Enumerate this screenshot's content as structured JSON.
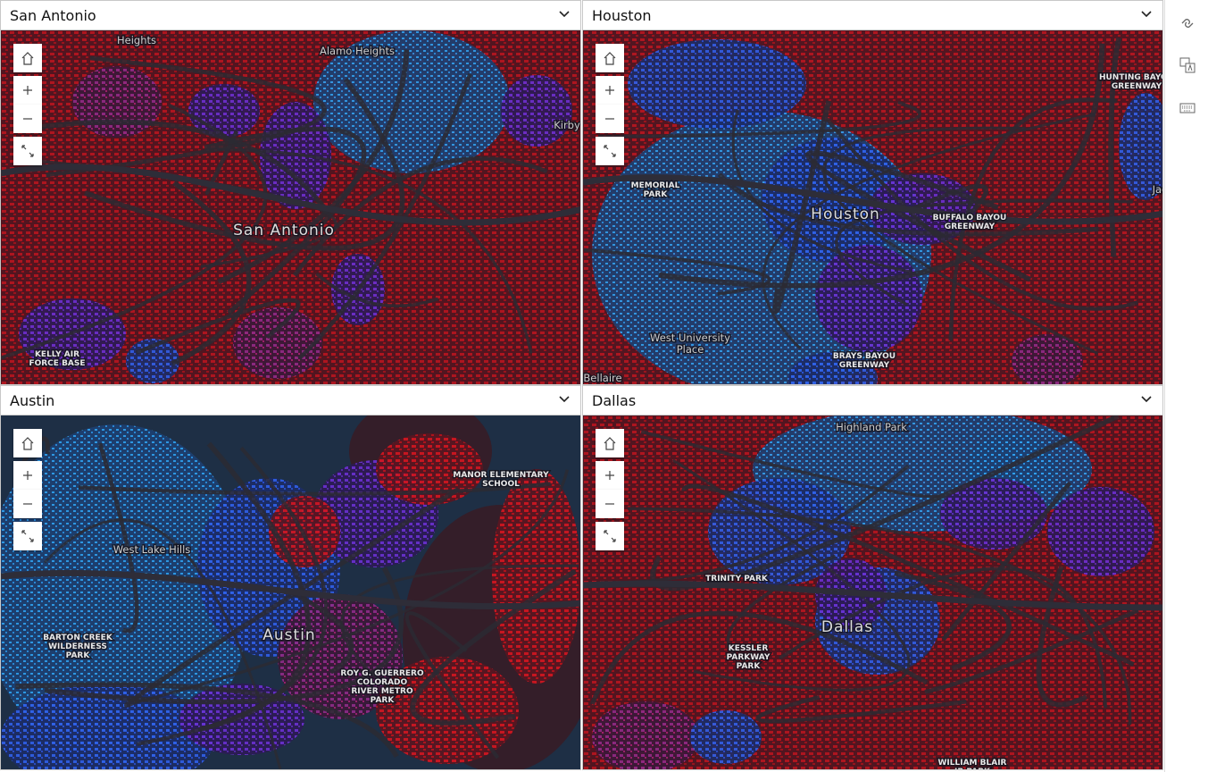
{
  "panels": [
    {
      "title": "San Antonio",
      "labels": [
        {
          "lines": [
            "Heights"
          ]
        },
        {
          "lines": [
            "Alamo Heights"
          ]
        },
        {
          "lines": [
            "Kirby"
          ]
        },
        {
          "lines": [
            "San Antonio"
          ]
        },
        {
          "lines": [
            "KELLY AIR",
            "FORCE BASE"
          ]
        }
      ]
    },
    {
      "title": "Houston",
      "labels": [
        {
          "lines": [
            "HUNTING BAYOU",
            "GREENWAY"
          ]
        },
        {
          "lines": [
            "MEMORIAL",
            "PARK"
          ]
        },
        {
          "lines": [
            "Houston"
          ]
        },
        {
          "lines": [
            "BUFFALO BAYOU",
            "GREENWAY"
          ]
        },
        {
          "lines": [
            "Jac"
          ]
        },
        {
          "lines": [
            "West University",
            "Place"
          ]
        },
        {
          "lines": [
            "BRAYS BAYOU",
            "GREENWAY"
          ]
        },
        {
          "lines": [
            "Bellaire"
          ]
        }
      ]
    },
    {
      "title": "Austin",
      "labels": [
        {
          "lines": [
            "MANOR ELEMENTARY",
            "SCHOOL"
          ]
        },
        {
          "lines": [
            "West Lake Hills"
          ]
        },
        {
          "lines": [
            "BARTON CREEK",
            "WILDERNESS",
            "PARK"
          ]
        },
        {
          "lines": [
            "Austin"
          ]
        },
        {
          "lines": [
            "ROY G. GUERRERO",
            "COLORADO",
            "RIVER METRO",
            "PARK"
          ]
        }
      ]
    },
    {
      "title": "Dallas",
      "labels": [
        {
          "lines": [
            "Highland Park"
          ]
        },
        {
          "lines": [
            "TRINITY PARK"
          ]
        },
        {
          "lines": [
            "Dallas"
          ]
        },
        {
          "lines": [
            "KESSLER",
            "PARKWAY",
            "PARK"
          ]
        },
        {
          "lines": [
            "WILLIAM BLAIR",
            "JR PARK"
          ]
        }
      ]
    }
  ]
}
